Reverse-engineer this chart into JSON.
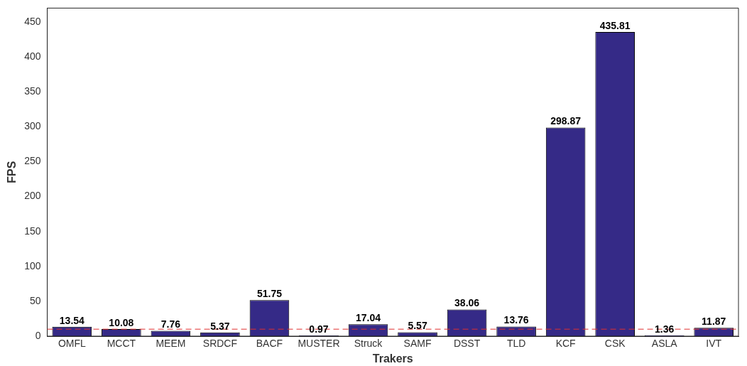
{
  "chart_data": {
    "type": "bar",
    "xlabel": "Trakers",
    "ylabel": "FPS",
    "categories": [
      "OMFL",
      "MCCT",
      "MEEM",
      "SRDCF",
      "BACF",
      "MUSTER",
      "Struck",
      "SAMF",
      "DSST",
      "TLD",
      "KCF",
      "CSK",
      "ASLA",
      "IVT"
    ],
    "values": [
      13.54,
      10.08,
      7.76,
      5.37,
      51.75,
      0.97,
      17.04,
      5.57,
      38.06,
      13.76,
      298.87,
      435.81,
      1.36,
      11.87
    ],
    "color": "#352a87",
    "ylim": [
      0,
      470
    ],
    "yticks": [
      0,
      50,
      100,
      150,
      200,
      250,
      300,
      350,
      400,
      450
    ],
    "ref_lines": [
      {
        "axis": "y",
        "value": 10,
        "color": "#e03030",
        "line_style": "dashed"
      }
    ],
    "data_labels": true,
    "grid": false,
    "legend": false
  }
}
